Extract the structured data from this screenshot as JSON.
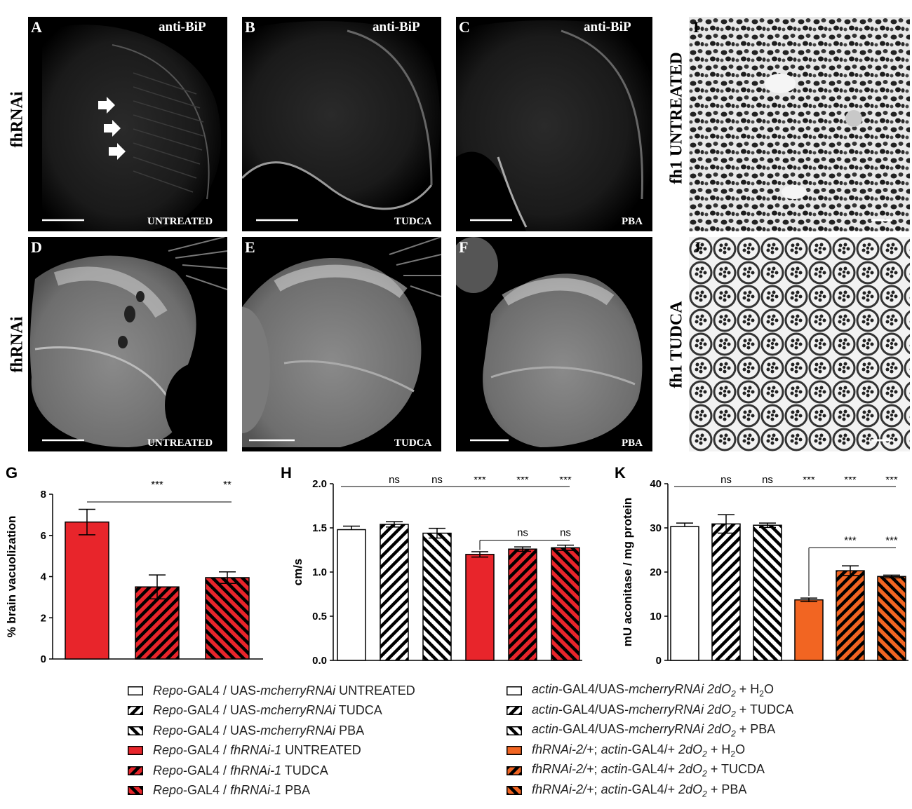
{
  "micrographs": {
    "A": {
      "letter": "A",
      "stain": "anti-BiP",
      "condition": "UNTREATED"
    },
    "B": {
      "letter": "B",
      "stain": "anti-BiP",
      "condition": "TUDCA"
    },
    "C": {
      "letter": "C",
      "stain": "anti-BiP",
      "condition": "PBA"
    },
    "D": {
      "letter": "D",
      "condition": "UNTREATED"
    },
    "E": {
      "letter": "E",
      "condition": "TUDCA"
    },
    "F": {
      "letter": "F",
      "condition": "PBA"
    },
    "I": {
      "letter": "I"
    },
    "J": {
      "letter": "J"
    }
  },
  "row_labels": {
    "top": "fhRNAi",
    "middle": "fhRNAi",
    "I": "fh1 UNTREATED",
    "J": "fh1 TUDCA"
  },
  "colors": {
    "red": "#e8252b",
    "orange": "#f26522",
    "white": "#ffffff",
    "black": "#000000"
  },
  "chart_data": [
    {
      "panel": "G",
      "type": "bar",
      "ylabel": "% brain vacuolization",
      "ylim": [
        0,
        8
      ],
      "yticks": [
        "0",
        "2",
        "4",
        "6",
        "8"
      ],
      "categories": [
        "Repo-GAL4 / fhRNAi-1 UNTREATED",
        "Repo-GAL4 / fhRNAi-1 TUDCA",
        "Repo-GAL4 / fhRNAi-1 PBA"
      ],
      "values": [
        6.65,
        3.5,
        3.95
      ],
      "errors": [
        0.62,
        0.58,
        0.28
      ],
      "fills": [
        "solid",
        "hatch-fwd",
        "hatch-back"
      ],
      "color": "#e8252b",
      "significance": [
        {
          "text": "***",
          "level": "top",
          "bar": 1
        },
        {
          "text": "**",
          "level": "top",
          "bar": 2
        }
      ]
    },
    {
      "panel": "H",
      "type": "bar",
      "ylabel": "cm/s",
      "ylim": [
        0,
        2.0
      ],
      "yticks": [
        "0.0",
        "0.5",
        "1.0",
        "1.5",
        "2.0"
      ],
      "categories": [
        "Repo-GAL4 / UAS-mcherryRNAi UNTREATED",
        "Repo-GAL4 / UAS-mcherryRNAi TUDCA",
        "Repo-GAL4 / UAS-mcherryRNAi PBA",
        "Repo-GAL4 / fhRNAi-1 UNTREATED",
        "Repo-GAL4 / fhRNAi-1 TUDCA",
        "Repo-GAL4 / fhRNAi-1 PBA"
      ],
      "values": [
        1.48,
        1.54,
        1.44,
        1.2,
        1.26,
        1.275
      ],
      "errors": [
        0.04,
        0.03,
        0.055,
        0.03,
        0.025,
        0.03
      ],
      "fills": [
        "solid",
        "hatch-fwd",
        "hatch-back",
        "solid",
        "hatch-fwd",
        "hatch-back"
      ],
      "colors": [
        "#ffffff",
        "#ffffff",
        "#ffffff",
        "#e8252b",
        "#e8252b",
        "#e8252b"
      ],
      "significance_top": [
        "ns",
        "ns",
        "***",
        "***",
        "***"
      ],
      "significance_inner": [
        "ns",
        "ns"
      ]
    },
    {
      "panel": "K",
      "type": "bar",
      "ylabel": "mU aconitase / mg protein",
      "ylim": [
        0,
        40
      ],
      "yticks": [
        "0",
        "10",
        "20",
        "30",
        "40"
      ],
      "categories": [
        "actin-GAL4/UAS-mcherryRNAi 2dO2 + H2O",
        "actin-GAL4/UAS-mcherryRNAi 2dO2 + TUDCA",
        "actin-GAL4/UAS-mcherryRNAi 2dO2 + PBA",
        "fhRNAi-2/+; actin-GAL4/+ 2dO2 + H2O",
        "fhRNAi-2/+; actin-GAL4/+ 2dO2 + TUCDA",
        "fhRNAi-2/+; actin-GAL4/+ 2dO2 + PBA"
      ],
      "values": [
        30.3,
        30.9,
        30.6,
        13.7,
        20.3,
        19.0
      ],
      "errors": [
        0.8,
        2.1,
        0.5,
        0.4,
        1.1,
        0.3
      ],
      "fills": [
        "solid",
        "hatch-fwd",
        "hatch-back",
        "solid",
        "hatch-fwd",
        "hatch-back"
      ],
      "colors": [
        "#ffffff",
        "#ffffff",
        "#ffffff",
        "#f26522",
        "#f26522",
        "#f26522"
      ],
      "significance_top": [
        "ns",
        "ns",
        "***",
        "***",
        "***"
      ],
      "significance_inner": [
        "***",
        "***"
      ]
    }
  ],
  "chart_labels": {
    "G": "G",
    "H": "H",
    "K": "K"
  },
  "legend_left": [
    {
      "italic": "Repo",
      "rest": "-GAL4 / UAS-",
      "italic2": "mcherryRNAi",
      "tail": " UNTREATED",
      "fill": "solid",
      "color": "#ffffff"
    },
    {
      "italic": "Repo",
      "rest": "-GAL4 / UAS-",
      "italic2": "mcherryRNAi",
      "tail": " TUDCA",
      "fill": "hatch-fwd",
      "color": "#ffffff"
    },
    {
      "italic": "Repo",
      "rest": "-GAL4 / UAS-",
      "italic2": "mcherryRNAi",
      "tail": " PBA",
      "fill": "hatch-back",
      "color": "#ffffff"
    },
    {
      "italic": "Repo",
      "rest": "-GAL4 / ",
      "italic2": "fhRNAi-1",
      "tail": " UNTREATED",
      "fill": "solid",
      "color": "#e8252b"
    },
    {
      "italic": "Repo",
      "rest": "-GAL4 / ",
      "italic2": "fhRNAi-1",
      "tail": " TUDCA",
      "fill": "hatch-fwd",
      "color": "#e8252b"
    },
    {
      "italic": "Repo",
      "rest": "-GAL4 / ",
      "italic2": "fhRNAi-1",
      "tail": " PBA",
      "fill": "hatch-back",
      "color": "#e8252b"
    }
  ],
  "legend_right": [
    {
      "italic": "actin",
      "rest": "-GAL4/UAS-",
      "italic2": "mcherryRNAi 2dO",
      "sub": "2",
      "tail": " + H",
      "sub2": "2",
      "tail2": "O",
      "fill": "solid",
      "color": "#ffffff"
    },
    {
      "italic": "actin",
      "rest": "-GAL4/UAS-",
      "italic2": "mcherryRNAi 2dO",
      "sub": "2",
      "tail": " + TUDCA",
      "sub2": "",
      "tail2": "",
      "fill": "hatch-fwd",
      "color": "#ffffff"
    },
    {
      "italic": "actin",
      "rest": "-GAL4/UAS-",
      "italic2": "mcherryRNAi 2dO",
      "sub": "2",
      "tail": " + PBA",
      "sub2": "",
      "tail2": "",
      "fill": "hatch-back",
      "color": "#ffffff"
    },
    {
      "italic": "fhRNAi-2/+",
      "rest": "; ",
      "italic2": "actin",
      "rest2": "-GAL4/+ ",
      "italic3": "2dO",
      "sub": "2",
      "tail": " + H",
      "sub2": "2",
      "tail2": "O",
      "fill": "solid",
      "color": "#f26522"
    },
    {
      "italic": "fhRNAi-2/+",
      "rest": "; ",
      "italic2": "actin",
      "rest2": "-GAL4/+ ",
      "italic3": "2dO",
      "sub": "2",
      "tail": " + TUCDA",
      "sub2": "",
      "tail2": "",
      "fill": "hatch-fwd",
      "color": "#f26522"
    },
    {
      "italic": "fhRNAi-2/+",
      "rest": "; ",
      "italic2": "actin",
      "rest2": "-GAL4/+ ",
      "italic3": "2dO",
      "sub": "2",
      "tail": " + PBA",
      "sub2": "",
      "tail2": "",
      "fill": "hatch-back",
      "color": "#f26522"
    }
  ]
}
